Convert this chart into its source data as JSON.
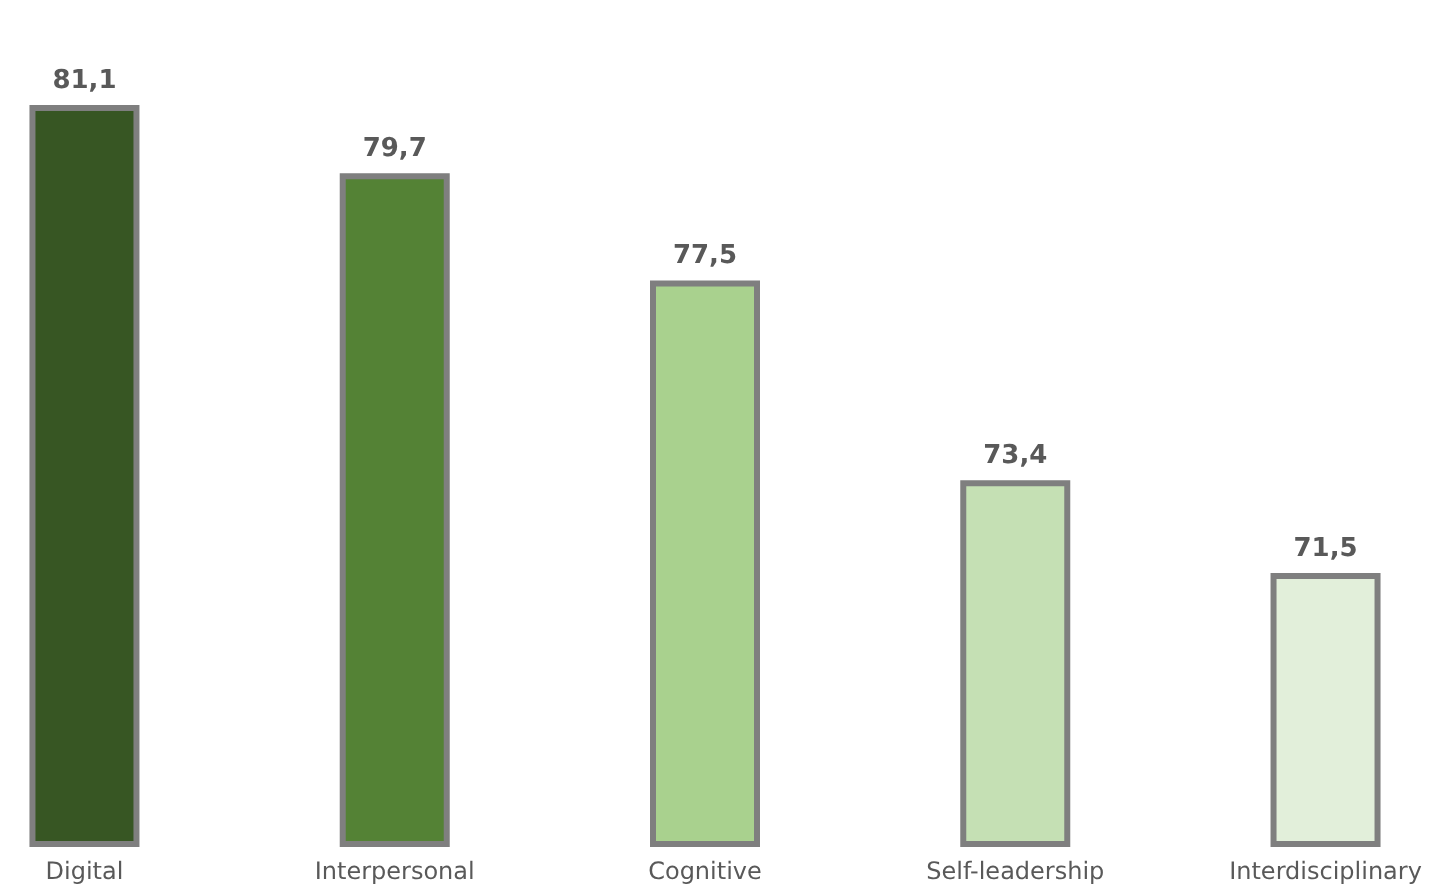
{
  "chart_data": {
    "type": "bar",
    "categories": [
      "Digital",
      "Interpersonal",
      "Cognitive",
      "Self-leadership",
      "Interdisciplinary"
    ],
    "values": [
      81.1,
      79.7,
      77.5,
      73.4,
      71.5
    ],
    "colors": [
      "#375623",
      "#548235",
      "#a9d18e",
      "#c5e0b4",
      "#e2efda"
    ],
    "value_labels": [
      "81,1",
      "79,7",
      "77,5",
      "73,4",
      "71,5"
    ],
    "ylim": [
      66,
      81.1
    ],
    "grid": false,
    "legend": false
  }
}
